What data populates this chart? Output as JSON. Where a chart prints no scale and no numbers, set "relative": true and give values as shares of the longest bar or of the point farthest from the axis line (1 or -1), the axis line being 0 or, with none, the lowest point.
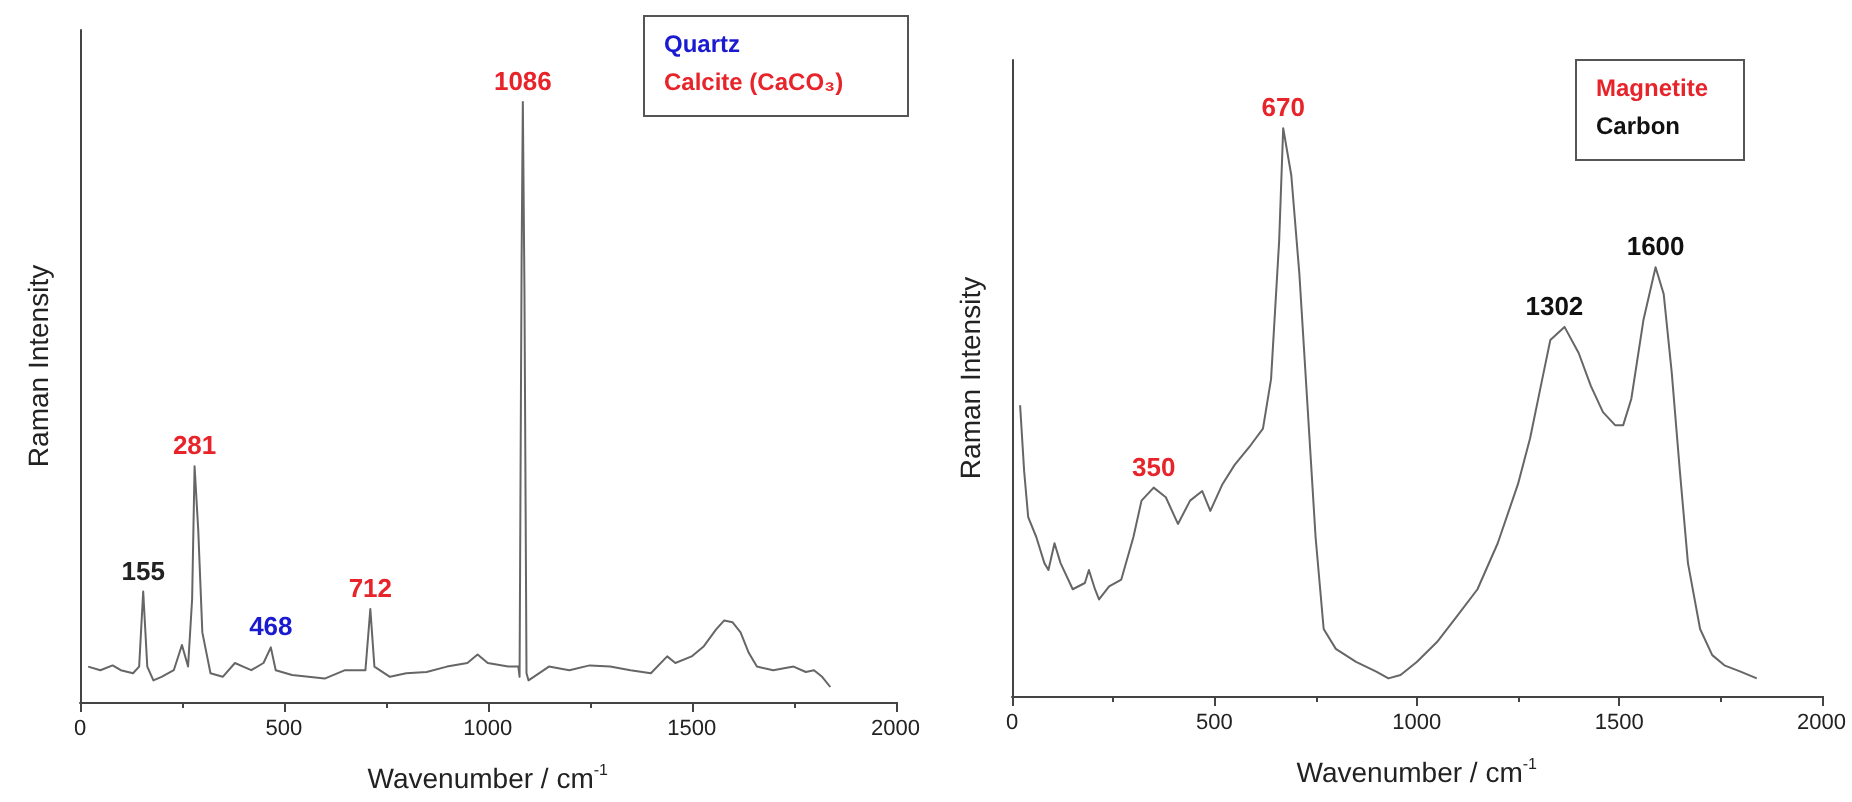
{
  "chart_data": [
    {
      "type": "line",
      "relative": true,
      "ylabel": "Raman Intensity",
      "xlabel": "Wavenumber / cm$^{-1}$",
      "xlim": [
        0,
        2000
      ],
      "xticks": [
        0,
        500,
        1000,
        1500,
        2000
      ],
      "grid": false,
      "marker": "none",
      "line_style": "solid",
      "x": [
        20,
        50,
        80,
        100,
        130,
        145,
        155,
        165,
        180,
        200,
        230,
        250,
        265,
        275,
        281,
        290,
        300,
        320,
        350,
        380,
        400,
        420,
        450,
        468,
        480,
        520,
        560,
        600,
        650,
        700,
        712,
        722,
        760,
        800,
        850,
        900,
        950,
        975,
        1000,
        1050,
        1075,
        1078,
        1083,
        1086,
        1090,
        1095,
        1100,
        1150,
        1200,
        1250,
        1300,
        1350,
        1400,
        1440,
        1460,
        1500,
        1530,
        1560,
        1580,
        1600,
        1620,
        1640,
        1660,
        1700,
        1750,
        1780,
        1800,
        1820,
        1840
      ],
      "series": [
        {
          "color": "#666666",
          "values": [
            0.059,
            0.053,
            0.061,
            0.053,
            0.048,
            0.059,
            0.184,
            0.059,
            0.036,
            0.042,
            0.053,
            0.095,
            0.059,
            0.172,
            0.393,
            0.286,
            0.116,
            0.048,
            0.042,
            0.065,
            0.059,
            0.053,
            0.065,
            0.091,
            0.053,
            0.045,
            0.042,
            0.039,
            0.053,
            0.053,
            0.155,
            0.059,
            0.042,
            0.048,
            0.05,
            0.059,
            0.065,
            0.079,
            0.065,
            0.059,
            0.059,
            0.042,
            0.739,
            1,
            0.683,
            0.048,
            0.036,
            0.059,
            0.053,
            0.061,
            0.059,
            0.053,
            0.048,
            0.076,
            0.065,
            0.076,
            0.093,
            0.121,
            0.136,
            0.133,
            0.116,
            0.082,
            0.059,
            0.053,
            0.059,
            0.05,
            0.053,
            0.042,
            0.025
          ]
        }
      ],
      "annotations": [
        "Quartz",
        "Calcite (CaCO₃)",
        {
          "text": "155",
          "x": 155,
          "y": 0.184
        },
        {
          "text": "281",
          "x": 281,
          "y": 0.393
        },
        {
          "text": "468",
          "x": 468,
          "y": 0.091
        },
        {
          "text": "712",
          "x": 712,
          "y": 0.155
        },
        {
          "text": "1086",
          "x": 1086,
          "y": 1
        }
      ]
    },
    {
      "type": "line",
      "relative": true,
      "ylabel": "Raman Intensity",
      "xlabel": "Wavenumber / cm$^{-1}$",
      "xlim": [
        0,
        2000
      ],
      "xticks": [
        0,
        500,
        1000,
        1500,
        2000
      ],
      "grid": false,
      "marker": "none",
      "line_style": "solid",
      "x": [
        20,
        30,
        40,
        60,
        80,
        90,
        105,
        120,
        150,
        180,
        190,
        205,
        215,
        240,
        270,
        300,
        320,
        350,
        380,
        410,
        440,
        470,
        490,
        520,
        550,
        590,
        620,
        640,
        660,
        670,
        690,
        710,
        730,
        750,
        770,
        800,
        850,
        900,
        930,
        960,
        1000,
        1050,
        1100,
        1150,
        1200,
        1250,
        1280,
        1310,
        1330,
        1365,
        1400,
        1430,
        1460,
        1490,
        1510,
        1530,
        1560,
        1590,
        1610,
        1630,
        1650,
        1670,
        1700,
        1730,
        1760,
        1800,
        1840
      ],
      "series": [
        {
          "color": "#666666",
          "values": [
            0.512,
            0.396,
            0.315,
            0.28,
            0.234,
            0.222,
            0.269,
            0.234,
            0.188,
            0.199,
            0.222,
            0.188,
            0.17,
            0.193,
            0.205,
            0.28,
            0.344,
            0.367,
            0.35,
            0.303,
            0.344,
            0.361,
            0.326,
            0.373,
            0.407,
            0.442,
            0.471,
            0.558,
            0.801,
            1,
            0.917,
            0.743,
            0.512,
            0.28,
            0.118,
            0.083,
            0.06,
            0.043,
            0.031,
            0.037,
            0.06,
            0.095,
            0.141,
            0.188,
            0.269,
            0.373,
            0.454,
            0.558,
            0.627,
            0.65,
            0.604,
            0.546,
            0.5,
            0.477,
            0.477,
            0.523,
            0.662,
            0.755,
            0.708,
            0.569,
            0.396,
            0.234,
            0.118,
            0.072,
            0.054,
            0.043,
            0.031
          ]
        }
      ],
      "annotations": [
        "Magnetite",
        "Carbon",
        {
          "text": "350",
          "x": 350,
          "y": 0.367
        },
        {
          "text": "670",
          "x": 670,
          "y": 1
        },
        {
          "text": "1302",
          "x": 1340,
          "y": 0.65
        },
        {
          "text": "1600",
          "x": 1590,
          "y": 0.755
        }
      ]
    }
  ]
}
